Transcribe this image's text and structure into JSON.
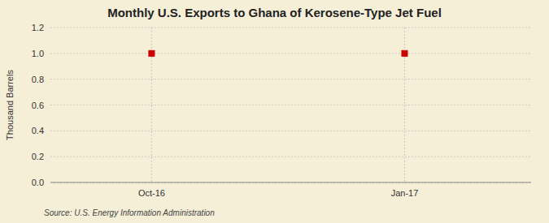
{
  "chart_data": {
    "type": "scatter",
    "title": "Monthly U.S. Exports to Ghana of Kerosene-Type Jet Fuel",
    "ylabel": "Thousand Barrels",
    "source": "Source: U.S. Energy Information Administration",
    "x": [
      0,
      3
    ],
    "values": [
      1.0,
      1.0
    ],
    "color": "#cc0000",
    "marker": "square",
    "xlim": [
      -1.2,
      4.5
    ],
    "xticks": [
      {
        "value": 0,
        "label": "Oct-16"
      },
      {
        "value": 3,
        "label": "Jan-17"
      }
    ],
    "ylim": [
      0.0,
      1.2
    ],
    "yticks": [
      {
        "value": 0.0,
        "label": "0.0"
      },
      0.2,
      0.4,
      0.6,
      0.8,
      {
        "value": 1.0,
        "label": "1.0"
      },
      1.2
    ],
    "grid": true
  }
}
